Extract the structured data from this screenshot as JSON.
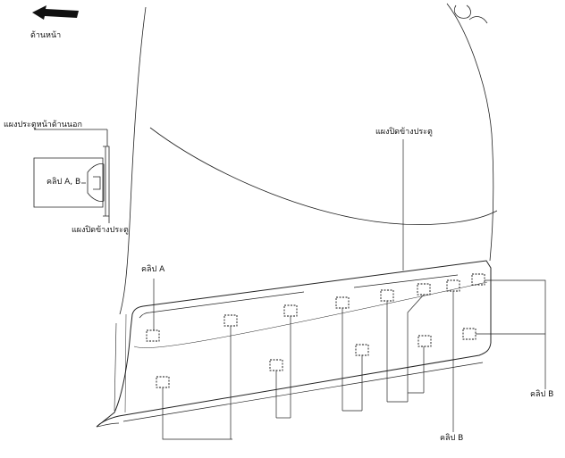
{
  "labels": {
    "front_direction": "ด้านหน้า",
    "outer_door_panel": "แผงประตูหน้าด้านนอก",
    "clip_ab": "คลิป A, B",
    "door_side_cover_detail": "แผงปิดข้างประตู",
    "door_side_cover": "แผงปิดข้างประตู",
    "clip_a": "คลิป A",
    "clip_b_right": "คลิป B",
    "clip_b_bottom": "คลิป B"
  }
}
